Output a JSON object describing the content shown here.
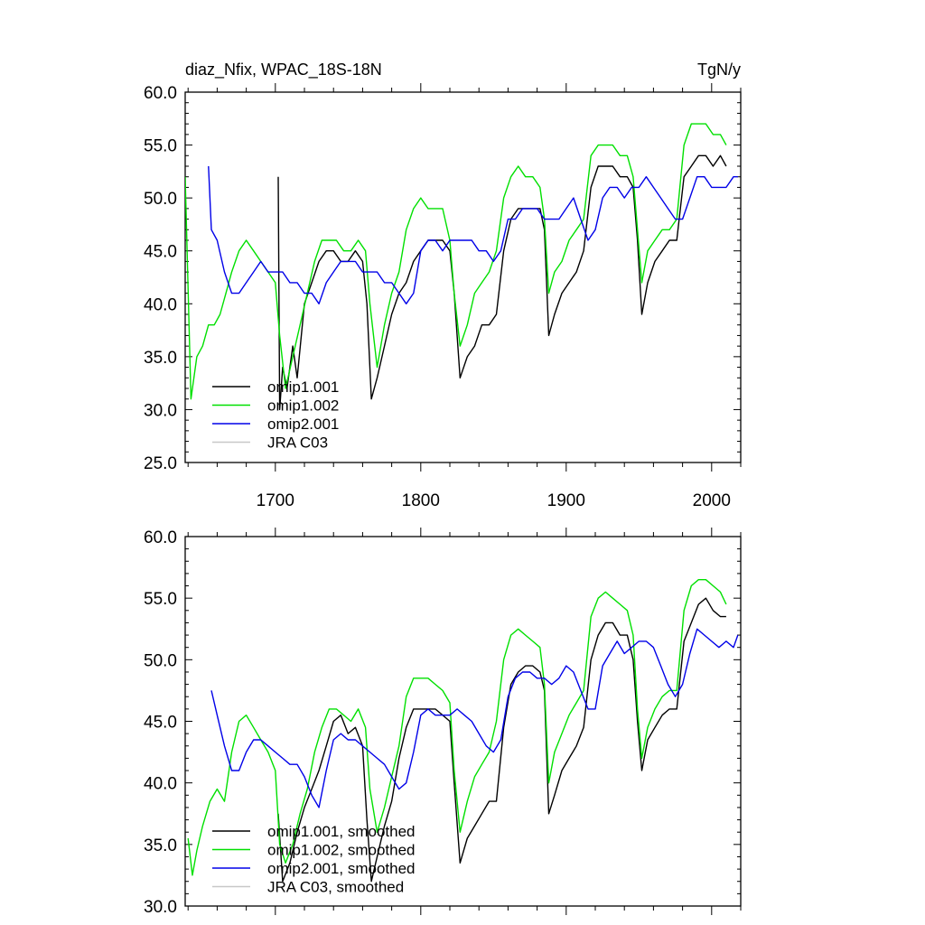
{
  "figure": {
    "title_left": "diaz_Nfix, WPAC_18S-18N",
    "title_right": "TgN/y"
  },
  "chart_data": [
    {
      "type": "line",
      "x_range": [
        1638,
        2020
      ],
      "ylim": [
        25,
        60
      ],
      "x_ticks": [
        1700,
        1800,
        1900,
        2000
      ],
      "y_ticks": [
        25,
        30,
        35,
        40,
        45,
        50,
        55,
        60
      ],
      "x_tick_labels": [
        "1700",
        "1800",
        "1900",
        "2000"
      ],
      "y_tick_labels": [
        "25.0",
        "30.0",
        "35.0",
        "40.0",
        "45.0",
        "50.0",
        "55.0",
        "60.0"
      ],
      "legend_position": "bottom-left",
      "series": [
        {
          "name": "omip1.001",
          "color": "#000000",
          "x": [
            1702,
            1703,
            1705,
            1708,
            1712,
            1715,
            1720,
            1725,
            1730,
            1735,
            1740,
            1745,
            1750,
            1755,
            1760,
            1763,
            1766,
            1770,
            1775,
            1780,
            1785,
            1790,
            1795,
            1800,
            1805,
            1810,
            1815,
            1820,
            1823,
            1827,
            1832,
            1837,
            1842,
            1847,
            1852,
            1857,
            1862,
            1867,
            1872,
            1877,
            1882,
            1885,
            1888,
            1892,
            1897,
            1902,
            1907,
            1912,
            1917,
            1922,
            1927,
            1932,
            1937,
            1942,
            1946,
            1949,
            1952,
            1956,
            1961,
            1966,
            1971,
            1976,
            1981,
            1986,
            1991,
            1996,
            2001,
            2006,
            2010
          ],
          "y": [
            52,
            30,
            34,
            32,
            36,
            33,
            40,
            42,
            44,
            45,
            45,
            44,
            44,
            45,
            44,
            40,
            31,
            33,
            36,
            39,
            41,
            42,
            44,
            45,
            46,
            46,
            46,
            45,
            41,
            33,
            35,
            36,
            38,
            38,
            39,
            45,
            48,
            49,
            49,
            49,
            49,
            47,
            37,
            39,
            41,
            42,
            43,
            45,
            51,
            53,
            53,
            53,
            52,
            52,
            51,
            46,
            39,
            42,
            44,
            45,
            46,
            46,
            52,
            53,
            54,
            54,
            53,
            54,
            53
          ]
        },
        {
          "name": "omip1.002",
          "color": "#00e000",
          "x": [
            1638,
            1642,
            1646,
            1650,
            1654,
            1658,
            1662,
            1666,
            1670,
            1675,
            1680,
            1685,
            1690,
            1695,
            1700,
            1703,
            1707,
            1712,
            1717,
            1722,
            1727,
            1732,
            1737,
            1742,
            1747,
            1752,
            1757,
            1762,
            1765,
            1770,
            1775,
            1780,
            1785,
            1790,
            1795,
            1800,
            1805,
            1810,
            1815,
            1820,
            1823,
            1827,
            1832,
            1837,
            1842,
            1847,
            1852,
            1857,
            1862,
            1867,
            1872,
            1877,
            1882,
            1885,
            1888,
            1892,
            1897,
            1902,
            1907,
            1912,
            1917,
            1922,
            1927,
            1932,
            1937,
            1942,
            1946,
            1949,
            1952,
            1956,
            1961,
            1966,
            1971,
            1976,
            1981,
            1986,
            1991,
            1996,
            2001,
            2006,
            2010
          ],
          "y": [
            52,
            31,
            35,
            36,
            38,
            38,
            39,
            41,
            43,
            45,
            46,
            45,
            44,
            43,
            42,
            37,
            32,
            35,
            38,
            41,
            44,
            46,
            46,
            46,
            45,
            45,
            46,
            45,
            40,
            34,
            38,
            41,
            43,
            47,
            49,
            50,
            49,
            49,
            49,
            46,
            41,
            36,
            38,
            41,
            42,
            43,
            45,
            50,
            52,
            53,
            52,
            52,
            51,
            48,
            41,
            43,
            44,
            46,
            47,
            48,
            54,
            55,
            55,
            55,
            54,
            54,
            52,
            47,
            42,
            45,
            46,
            47,
            47,
            48,
            55,
            57,
            57,
            57,
            56,
            56,
            55
          ]
        },
        {
          "name": "omip2.001",
          "color": "#0000e8",
          "x": [
            1654,
            1656,
            1660,
            1665,
            1670,
            1675,
            1680,
            1685,
            1690,
            1695,
            1700,
            1705,
            1710,
            1715,
            1720,
            1725,
            1730,
            1735,
            1740,
            1745,
            1750,
            1755,
            1760,
            1765,
            1770,
            1775,
            1780,
            1785,
            1790,
            1795,
            1800,
            1805,
            1810,
            1815,
            1820,
            1825,
            1830,
            1835,
            1840,
            1845,
            1850,
            1855,
            1860,
            1865,
            1870,
            1875,
            1880,
            1885,
            1890,
            1895,
            1900,
            1905,
            1910,
            1915,
            1920,
            1925,
            1930,
            1935,
            1940,
            1945,
            1950,
            1955,
            1960,
            1965,
            1970,
            1975,
            1980,
            1985,
            1990,
            1995,
            2000,
            2005,
            2010,
            2015,
            2018
          ],
          "y": [
            53,
            47,
            46,
            43,
            41,
            41,
            42,
            43,
            44,
            43,
            43,
            43,
            42,
            42,
            41,
            41,
            40,
            42,
            43,
            44,
            44,
            44,
            43,
            43,
            43,
            42,
            42,
            41,
            40,
            41,
            45,
            46,
            46,
            45,
            46,
            46,
            46,
            46,
            45,
            45,
            44,
            45,
            48,
            48,
            49,
            49,
            49,
            48,
            48,
            48,
            49,
            50,
            48,
            46,
            47,
            50,
            51,
            51,
            50,
            51,
            51,
            52,
            51,
            50,
            49,
            48,
            48,
            50,
            52,
            52,
            51,
            51,
            51,
            52,
            52
          ]
        },
        {
          "name": "JRA C03",
          "color": "#c8c8c8",
          "x": [],
          "y": []
        }
      ]
    },
    {
      "type": "line",
      "x_range": [
        1638,
        2020
      ],
      "ylim": [
        30,
        60
      ],
      "x_ticks": [
        1700,
        1800,
        1900,
        2000
      ],
      "y_ticks": [
        30,
        35,
        40,
        45,
        50,
        55,
        60
      ],
      "y_tick_labels": [
        "30.0",
        "35.0",
        "40.0",
        "45.0",
        "50.0",
        "55.0",
        "60.0"
      ],
      "legend_position": "bottom-left",
      "series": [
        {
          "name": "omip1.001, smoothed",
          "color": "#000000",
          "x": [
            1702,
            1705,
            1710,
            1715,
            1720,
            1725,
            1730,
            1735,
            1740,
            1745,
            1750,
            1755,
            1760,
            1763,
            1766,
            1770,
            1775,
            1780,
            1785,
            1790,
            1795,
            1800,
            1805,
            1810,
            1815,
            1820,
            1823,
            1827,
            1832,
            1837,
            1842,
            1847,
            1852,
            1857,
            1862,
            1867,
            1872,
            1877,
            1882,
            1885,
            1888,
            1892,
            1897,
            1902,
            1907,
            1912,
            1917,
            1922,
            1927,
            1932,
            1937,
            1942,
            1946,
            1949,
            1952,
            1956,
            1961,
            1966,
            1971,
            1976,
            1981,
            1986,
            1991,
            1996,
            2001,
            2006,
            2010
          ],
          "y": [
            37.5,
            32.0,
            33.5,
            36.0,
            38.0,
            39.5,
            41.0,
            43.0,
            45.0,
            45.5,
            44.0,
            44.5,
            43.0,
            37.0,
            32.0,
            34.0,
            36.5,
            38.5,
            42.0,
            44.5,
            46.0,
            46.0,
            46.0,
            46.0,
            45.5,
            45.0,
            40.0,
            33.5,
            35.5,
            36.5,
            37.5,
            38.5,
            38.5,
            44.5,
            48.0,
            49.0,
            49.5,
            49.5,
            49.0,
            47.5,
            37.5,
            39.0,
            41.0,
            42.0,
            43.0,
            44.5,
            50.0,
            52.0,
            53.0,
            53.0,
            52.0,
            52.0,
            50.0,
            45.0,
            41.0,
            43.5,
            44.5,
            45.5,
            46.0,
            46.0,
            51.5,
            53.0,
            54.5,
            55.0,
            54.0,
            53.5,
            53.5
          ]
        },
        {
          "name": "omip1.002, smoothed",
          "color": "#00e000",
          "x": [
            1640,
            1643,
            1646,
            1650,
            1655,
            1660,
            1665,
            1670,
            1675,
            1680,
            1685,
            1690,
            1695,
            1700,
            1703,
            1707,
            1712,
            1717,
            1722,
            1727,
            1732,
            1737,
            1742,
            1747,
            1752,
            1757,
            1762,
            1765,
            1770,
            1775,
            1780,
            1785,
            1790,
            1795,
            1800,
            1805,
            1810,
            1815,
            1820,
            1823,
            1827,
            1832,
            1837,
            1842,
            1847,
            1852,
            1857,
            1862,
            1867,
            1872,
            1877,
            1882,
            1885,
            1888,
            1892,
            1897,
            1902,
            1907,
            1912,
            1917,
            1922,
            1927,
            1932,
            1937,
            1942,
            1946,
            1949,
            1952,
            1956,
            1961,
            1966,
            1971,
            1976,
            1981,
            1986,
            1991,
            1996,
            2001,
            2006,
            2010
          ],
          "y": [
            35.5,
            32.5,
            34.5,
            36.5,
            38.5,
            39.5,
            38.5,
            42.5,
            45.0,
            45.5,
            44.5,
            43.5,
            42.5,
            41.0,
            35.0,
            33.5,
            35.0,
            37.5,
            39.5,
            42.5,
            44.5,
            46.0,
            46.0,
            45.5,
            45.0,
            46.0,
            44.5,
            39.5,
            36.0,
            38.0,
            40.5,
            43.0,
            47.0,
            48.5,
            48.5,
            48.5,
            48.0,
            47.5,
            46.5,
            41.0,
            36.0,
            38.5,
            40.5,
            41.5,
            42.5,
            45.0,
            50.0,
            52.0,
            52.5,
            52.0,
            51.5,
            51.0,
            48.0,
            40.0,
            42.5,
            44.0,
            45.5,
            46.5,
            47.5,
            53.5,
            55.0,
            55.5,
            55.0,
            54.5,
            54.0,
            52.0,
            46.0,
            42.0,
            44.5,
            46.0,
            47.0,
            47.5,
            47.5,
            54.0,
            56.0,
            56.5,
            56.5,
            56.0,
            55.5,
            54.5
          ]
        },
        {
          "name": "omip2.001, smoothed",
          "color": "#0000e8",
          "x": [
            1656,
            1660,
            1665,
            1670,
            1675,
            1680,
            1685,
            1690,
            1695,
            1700,
            1705,
            1710,
            1715,
            1720,
            1725,
            1730,
            1735,
            1740,
            1745,
            1750,
            1755,
            1760,
            1765,
            1770,
            1775,
            1780,
            1785,
            1790,
            1795,
            1800,
            1805,
            1810,
            1815,
            1820,
            1825,
            1830,
            1835,
            1840,
            1845,
            1850,
            1855,
            1860,
            1865,
            1870,
            1875,
            1880,
            1885,
            1890,
            1895,
            1900,
            1905,
            1910,
            1915,
            1920,
            1925,
            1930,
            1935,
            1940,
            1945,
            1950,
            1955,
            1960,
            1965,
            1970,
            1975,
            1980,
            1985,
            1990,
            1995,
            2000,
            2005,
            2010,
            2015,
            2018
          ],
          "y": [
            47.5,
            45.5,
            43.0,
            41.0,
            41.0,
            42.5,
            43.5,
            43.5,
            43.0,
            42.5,
            42.0,
            41.5,
            41.5,
            40.5,
            39.0,
            38.0,
            41.0,
            43.5,
            44.0,
            43.5,
            43.5,
            43.0,
            42.5,
            42.0,
            41.5,
            40.5,
            39.5,
            40.0,
            42.5,
            45.5,
            46.0,
            45.5,
            45.5,
            45.5,
            46.0,
            45.5,
            45.0,
            44.0,
            43.0,
            42.5,
            43.5,
            47.0,
            48.5,
            49.0,
            49.0,
            48.5,
            48.5,
            48.0,
            48.5,
            49.5,
            49.0,
            47.5,
            46.0,
            46.0,
            49.5,
            50.5,
            51.5,
            50.5,
            51.0,
            51.5,
            51.5,
            51.0,
            49.5,
            48.0,
            47.0,
            48.0,
            50.5,
            52.5,
            52.0,
            51.5,
            51.0,
            51.5,
            51.0,
            52.0
          ]
        },
        {
          "name": "JRA C03, smoothed",
          "color": "#c8c8c8",
          "x": [],
          "y": []
        }
      ]
    }
  ]
}
